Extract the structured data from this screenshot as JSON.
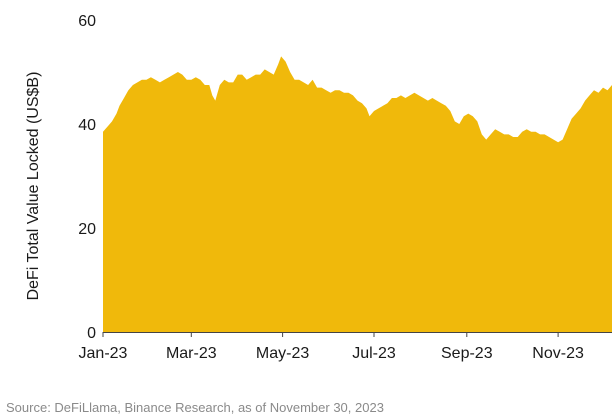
{
  "colors": {
    "area_fill": "#F0B90B",
    "axis": "#444444",
    "text": "#1a1a1a",
    "source": "#8a8a8a"
  },
  "source_note": "Source: DeFiLlama, Binance Research, as of November 30, 2023",
  "chart_data": {
    "type": "area",
    "title": "",
    "ylabel": "DeFi Total Value Locked (US$B)",
    "xlabel": "",
    "ylim": [
      0,
      60
    ],
    "y_ticks": [
      0,
      20,
      40,
      60
    ],
    "x_ticks": [
      "Jan-23",
      "Mar-23",
      "May-23",
      "Jul-23",
      "Sep-23",
      "Nov-23"
    ],
    "grid": false,
    "series": [
      {
        "values": [
          [
            0,
            38.5
          ],
          [
            3,
            39.5
          ],
          [
            6,
            40.5
          ],
          [
            9,
            42.0
          ],
          [
            11,
            43.5
          ],
          [
            14,
            45.0
          ],
          [
            17,
            46.5
          ],
          [
            20,
            47.5
          ],
          [
            23,
            48.0
          ],
          [
            26,
            48.5
          ],
          [
            29,
            48.5
          ],
          [
            32,
            49.0
          ],
          [
            35,
            48.5
          ],
          [
            38,
            48.0
          ],
          [
            41,
            48.5
          ],
          [
            44,
            49.0
          ],
          [
            47,
            49.5
          ],
          [
            50,
            50.0
          ],
          [
            53,
            49.5
          ],
          [
            56,
            48.5
          ],
          [
            59,
            48.5
          ],
          [
            62,
            49.0
          ],
          [
            65,
            48.5
          ],
          [
            68,
            47.5
          ],
          [
            71,
            47.5
          ],
          [
            73,
            45.5
          ],
          [
            75,
            44.5
          ],
          [
            78,
            47.5
          ],
          [
            81,
            48.5
          ],
          [
            84,
            48.0
          ],
          [
            87,
            48.0
          ],
          [
            90,
            49.5
          ],
          [
            93,
            49.5
          ],
          [
            96,
            48.5
          ],
          [
            99,
            49.0
          ],
          [
            102,
            49.5
          ],
          [
            105,
            49.5
          ],
          [
            108,
            50.5
          ],
          [
            111,
            50.0
          ],
          [
            114,
            49.5
          ],
          [
            117,
            51.5
          ],
          [
            119,
            53.0
          ],
          [
            122,
            52.0
          ],
          [
            125,
            50.0
          ],
          [
            128,
            48.5
          ],
          [
            131,
            48.5
          ],
          [
            134,
            48.0
          ],
          [
            137,
            47.5
          ],
          [
            140,
            48.5
          ],
          [
            143,
            47.0
          ],
          [
            146,
            47.0
          ],
          [
            149,
            46.5
          ],
          [
            152,
            46.0
          ],
          [
            155,
            46.5
          ],
          [
            158,
            46.5
          ],
          [
            161,
            46.0
          ],
          [
            164,
            46.0
          ],
          [
            167,
            45.5
          ],
          [
            170,
            44.5
          ],
          [
            173,
            44.0
          ],
          [
            176,
            43.0
          ],
          [
            178,
            41.5
          ],
          [
            181,
            42.5
          ],
          [
            184,
            43.0
          ],
          [
            187,
            43.5
          ],
          [
            190,
            44.0
          ],
          [
            193,
            45.0
          ],
          [
            196,
            45.0
          ],
          [
            199,
            45.5
          ],
          [
            202,
            45.0
          ],
          [
            205,
            45.5
          ],
          [
            208,
            46.0
          ],
          [
            211,
            45.5
          ],
          [
            214,
            45.0
          ],
          [
            217,
            44.5
          ],
          [
            220,
            45.0
          ],
          [
            223,
            44.5
          ],
          [
            226,
            44.0
          ],
          [
            229,
            43.5
          ],
          [
            232,
            42.5
          ],
          [
            235,
            40.5
          ],
          [
            238,
            40.0
          ],
          [
            241,
            41.5
          ],
          [
            244,
            42.0
          ],
          [
            247,
            41.5
          ],
          [
            250,
            40.5
          ],
          [
            253,
            38.0
          ],
          [
            256,
            37.0
          ],
          [
            259,
            38.0
          ],
          [
            262,
            39.0
          ],
          [
            265,
            38.5
          ],
          [
            268,
            38.0
          ],
          [
            271,
            38.0
          ],
          [
            274,
            37.5
          ],
          [
            277,
            37.5
          ],
          [
            280,
            38.5
          ],
          [
            283,
            39.0
          ],
          [
            286,
            38.5
          ],
          [
            289,
            38.5
          ],
          [
            292,
            38.0
          ],
          [
            295,
            38.0
          ],
          [
            298,
            37.5
          ],
          [
            301,
            37.0
          ],
          [
            304,
            36.5
          ],
          [
            307,
            37.0
          ],
          [
            310,
            39.0
          ],
          [
            313,
            41.0
          ],
          [
            316,
            42.0
          ],
          [
            319,
            43.0
          ],
          [
            322,
            44.5
          ],
          [
            325,
            45.5
          ],
          [
            328,
            46.5
          ],
          [
            331,
            46.0
          ],
          [
            334,
            47.0
          ],
          [
            337,
            46.5
          ],
          [
            340,
            47.5
          ]
        ]
      }
    ]
  }
}
